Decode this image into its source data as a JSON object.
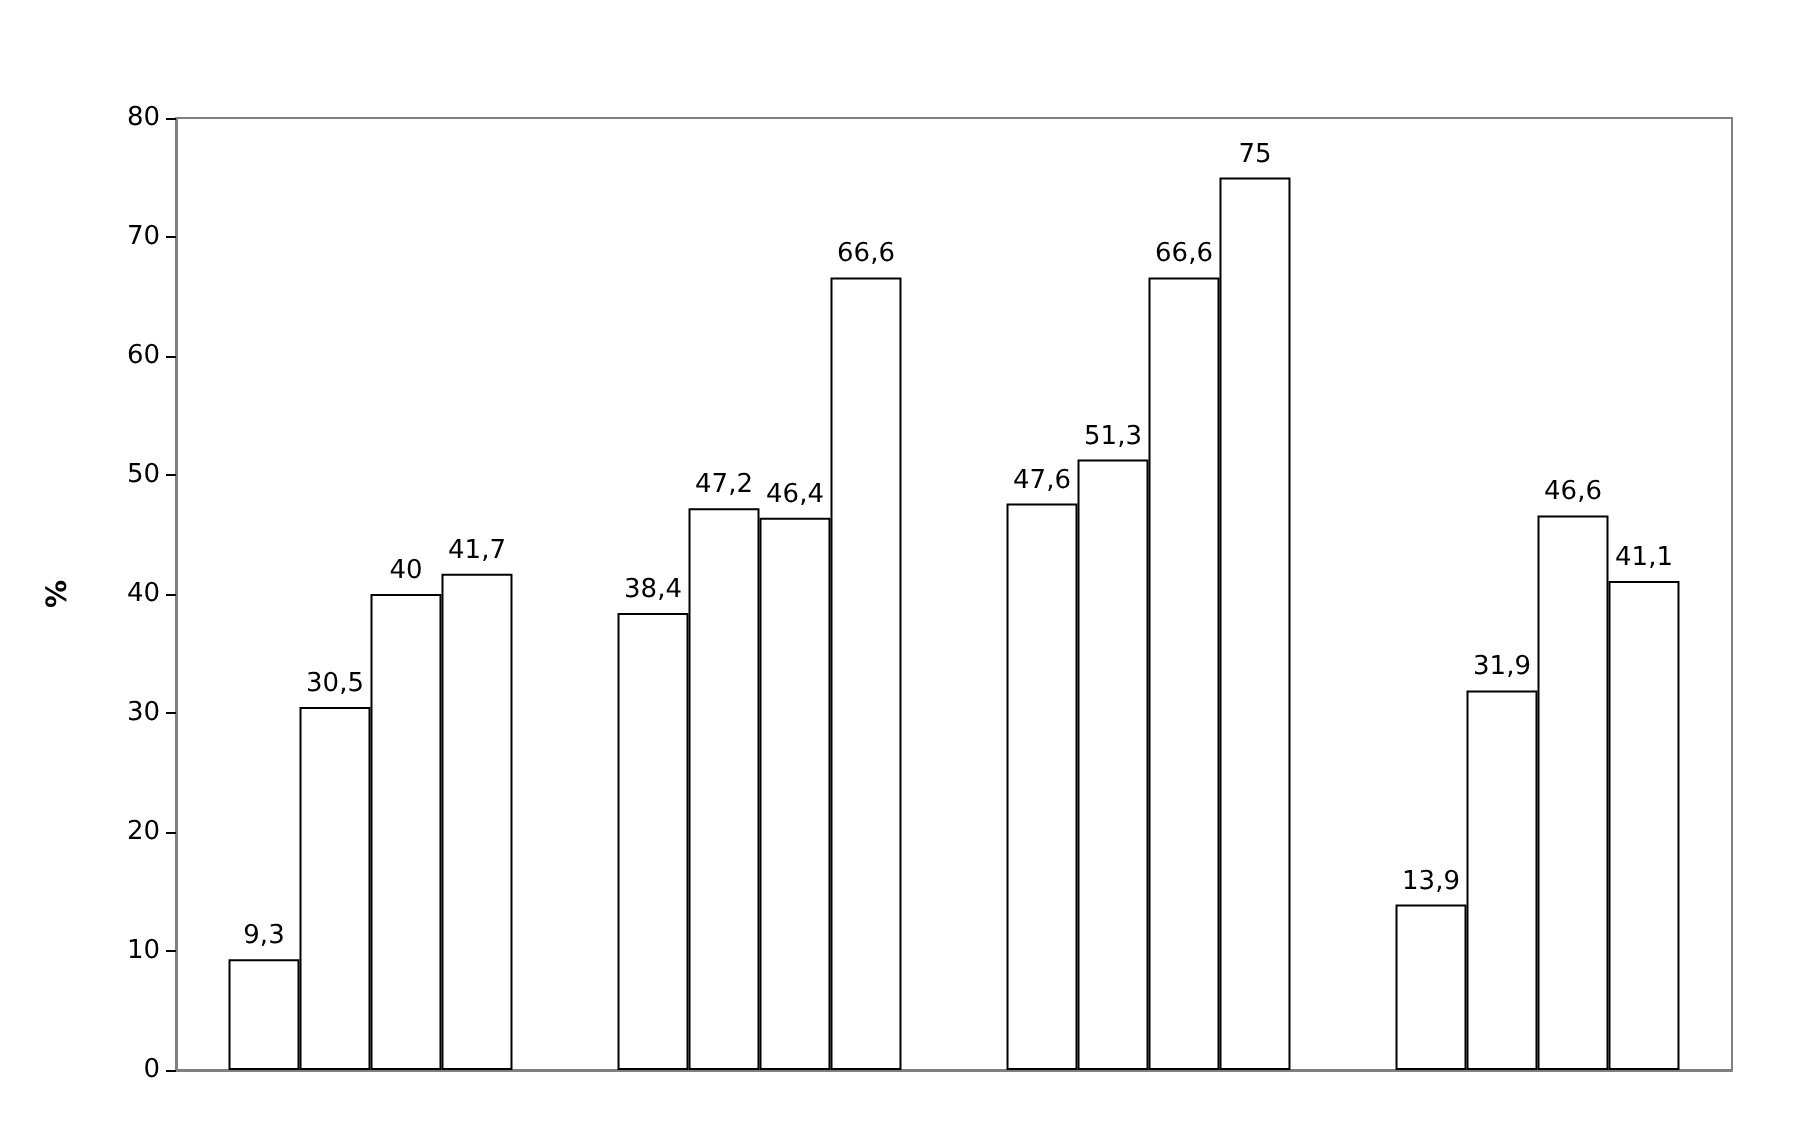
{
  "chart_data": {
    "type": "bar",
    "ylabel": "%",
    "categories": [
      null,
      null,
      null,
      null
    ],
    "series": [
      {
        "color": "#ffffff",
        "values": [
          9.3,
          38.4,
          47.6,
          13.9
        ],
        "value_labels": [
          "9,3",
          "38,4",
          "47,6",
          "13,9"
        ]
      },
      {
        "color": "#ffffff",
        "values": [
          30.5,
          47.2,
          51.3,
          31.9
        ],
        "value_labels": [
          "30,5",
          "47,2",
          "51,3",
          "31,9"
        ]
      },
      {
        "color": "#ffffff",
        "values": [
          40,
          46.4,
          66.6,
          46.6
        ],
        "value_labels": [
          "40",
          "46,4",
          "66,6",
          "46,6"
        ]
      },
      {
        "color": "#ffffff",
        "values": [
          41.7,
          66.6,
          75,
          41.1
        ],
        "value_labels": [
          "41,7",
          "66,6",
          "75",
          "41,1"
        ]
      }
    ],
    "ylim": [
      0,
      80
    ],
    "yticks": [
      0,
      10,
      20,
      30,
      40,
      50,
      60,
      70,
      80
    ]
  }
}
